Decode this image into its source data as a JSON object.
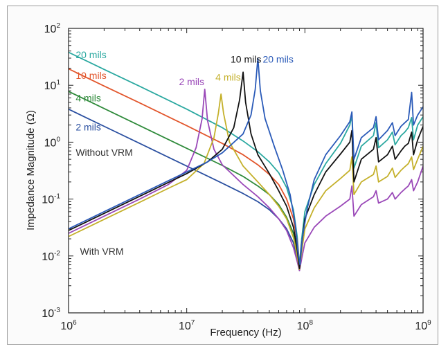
{
  "chart_data": {
    "type": "line",
    "title": "",
    "xlabel": "Frequency (Hz)",
    "ylabel": "Impedance Magnitude (Ω)",
    "xscale": "log",
    "yscale": "log",
    "xlim": [
      1000000,
      1000000000
    ],
    "ylim": [
      0.001,
      100
    ],
    "grid": false,
    "legend": "none",
    "x_tick_labels": [
      {
        "base": "10",
        "exp": "6",
        "value": 1000000
      },
      {
        "base": "10",
        "exp": "7",
        "value": 10000000
      },
      {
        "base": "10",
        "exp": "8",
        "value": 100000000
      },
      {
        "base": "10",
        "exp": "9",
        "value": 1000000000
      }
    ],
    "y_tick_labels": [
      {
        "base": "10",
        "exp": "-3",
        "value": 0.001
      },
      {
        "base": "10",
        "exp": "-2",
        "value": 0.01
      },
      {
        "base": "10",
        "exp": "-1",
        "value": 0.1
      },
      {
        "base": "10",
        "exp": "0",
        "value": 1
      },
      {
        "base": "10",
        "exp": "1",
        "value": 10
      },
      {
        "base": "10",
        "exp": "2",
        "value": 100
      }
    ],
    "series": [
      {
        "color": "#2aa8a0",
        "points": [
          [
            1000000.0,
            38
          ],
          [
            2000000.0,
            19
          ],
          [
            4000000.0,
            9.6
          ],
          [
            10000000.0,
            3.8
          ],
          [
            20000000.0,
            1.8
          ],
          [
            30000000.0,
            1.05
          ],
          [
            40000000.0,
            0.68
          ],
          [
            50000000.0,
            0.45
          ],
          [
            60000000.0,
            0.29
          ],
          [
            70000000.0,
            0.16
          ],
          [
            80000000.0,
            0.065
          ],
          [
            86000000.0,
            0.022
          ],
          [
            90000000.0,
            0.007
          ],
          [
            94000000.0,
            0.02
          ],
          [
            100000000.0,
            0.06
          ],
          [
            120000000.0,
            0.18
          ],
          [
            150000000.0,
            0.42
          ],
          [
            200000000.0,
            0.95
          ],
          [
            240000000.0,
            2.0
          ],
          [
            250000000.0,
            3.0
          ],
          [
            260000000.0,
            0.35
          ],
          [
            300000000.0,
            0.85
          ],
          [
            380000000.0,
            1.3
          ],
          [
            400000000.0,
            2.2
          ],
          [
            420000000.0,
            0.8
          ],
          [
            500000000.0,
            1.1
          ],
          [
            550000000.0,
            1.5
          ],
          [
            580000000.0,
            0.9
          ],
          [
            650000000.0,
            1.3
          ],
          [
            700000000.0,
            1.5
          ],
          [
            750000000.0,
            1.8
          ],
          [
            800000000.0,
            2.7
          ],
          [
            830000000.0,
            1.1
          ],
          [
            900000000.0,
            2.0
          ],
          [
            1000000000.0,
            2.8
          ]
        ]
      },
      {
        "color": "#e2552b",
        "points": [
          [
            1000000.0,
            19.5
          ],
          [
            2000000.0,
            9.7
          ],
          [
            4000000.0,
            4.9
          ],
          [
            10000000.0,
            1.95
          ],
          [
            20000000.0,
            0.95
          ],
          [
            30000000.0,
            0.6
          ],
          [
            40000000.0,
            0.4
          ],
          [
            50000000.0,
            0.27
          ],
          [
            60000000.0,
            0.18
          ],
          [
            70000000.0,
            0.1
          ],
          [
            80000000.0,
            0.045
          ],
          [
            86000000.0,
            0.018
          ],
          [
            90000000.0,
            0.0065
          ]
        ]
      },
      {
        "color": "#2e8a3a",
        "points": [
          [
            1000000.0,
            7.8
          ],
          [
            2000000.0,
            3.9
          ],
          [
            4000000.0,
            1.95
          ],
          [
            10000000.0,
            0.78
          ],
          [
            20000000.0,
            0.39
          ],
          [
            30000000.0,
            0.25
          ],
          [
            40000000.0,
            0.17
          ],
          [
            50000000.0,
            0.12
          ],
          [
            60000000.0,
            0.08
          ],
          [
            70000000.0,
            0.048
          ],
          [
            80000000.0,
            0.025
          ],
          [
            86000000.0,
            0.012
          ],
          [
            90000000.0,
            0.0058
          ]
        ]
      },
      {
        "color": "#2a4fa0",
        "points": [
          [
            1000000.0,
            3.8
          ],
          [
            2000000.0,
            1.9
          ],
          [
            4000000.0,
            0.95
          ],
          [
            10000000.0,
            0.38
          ],
          [
            20000000.0,
            0.19
          ],
          [
            30000000.0,
            0.125
          ],
          [
            40000000.0,
            0.09
          ],
          [
            50000000.0,
            0.065
          ],
          [
            60000000.0,
            0.045
          ],
          [
            70000000.0,
            0.03
          ],
          [
            80000000.0,
            0.017
          ],
          [
            86000000.0,
            0.009
          ],
          [
            90000000.0,
            0.0055
          ]
        ]
      },
      {
        "color": "#9a48b8",
        "points": [
          [
            1000000.0,
            0.025
          ],
          [
            2000000.0,
            0.05
          ],
          [
            4000000.0,
            0.1
          ],
          [
            7000000.0,
            0.18
          ],
          [
            10000000.0,
            0.32
          ],
          [
            12000000.0,
            0.8
          ],
          [
            13500000.0,
            2.6
          ],
          [
            14200000.0,
            8.5
          ],
          [
            15000000.0,
            2.4
          ],
          [
            17000000.0,
            0.75
          ],
          [
            20000000.0,
            0.4
          ],
          [
            30000000.0,
            0.18
          ],
          [
            40000000.0,
            0.11
          ],
          [
            50000000.0,
            0.07
          ],
          [
            60000000.0,
            0.045
          ],
          [
            70000000.0,
            0.028
          ],
          [
            80000000.0,
            0.014
          ],
          [
            86000000.0,
            0.008
          ],
          [
            90000000.0,
            0.0055
          ],
          [
            94000000.0,
            0.009
          ],
          [
            100000000.0,
            0.017
          ],
          [
            120000000.0,
            0.032
          ],
          [
            150000000.0,
            0.05
          ],
          [
            200000000.0,
            0.075
          ],
          [
            240000000.0,
            0.1
          ],
          [
            250000000.0,
            0.17
          ],
          [
            260000000.0,
            0.05
          ],
          [
            300000000.0,
            0.08
          ],
          [
            380000000.0,
            0.11
          ],
          [
            400000000.0,
            0.14
          ],
          [
            420000000.0,
            0.085
          ],
          [
            500000000.0,
            0.1
          ],
          [
            550000000.0,
            0.13
          ],
          [
            580000000.0,
            0.1
          ],
          [
            650000000.0,
            0.13
          ],
          [
            700000000.0,
            0.15
          ],
          [
            750000000.0,
            0.17
          ],
          [
            800000000.0,
            0.22
          ],
          [
            830000000.0,
            0.14
          ],
          [
            900000000.0,
            0.2
          ],
          [
            1000000000.0,
            0.38
          ]
        ]
      },
      {
        "color": "#c4b02a",
        "points": [
          [
            1000000.0,
            0.022
          ],
          [
            2000000.0,
            0.044
          ],
          [
            4000000.0,
            0.088
          ],
          [
            7000000.0,
            0.155
          ],
          [
            10000000.0,
            0.22
          ],
          [
            14000000.0,
            0.42
          ],
          [
            17000000.0,
            1.2
          ],
          [
            18500000.0,
            3.2
          ],
          [
            19500000.0,
            7.0
          ],
          [
            20500000.0,
            3.2
          ],
          [
            23000000.0,
            1.0
          ],
          [
            30000000.0,
            0.38
          ],
          [
            40000000.0,
            0.2
          ],
          [
            50000000.0,
            0.12
          ],
          [
            60000000.0,
            0.075
          ],
          [
            70000000.0,
            0.045
          ],
          [
            80000000.0,
            0.021
          ],
          [
            86000000.0,
            0.01
          ],
          [
            90000000.0,
            0.0058
          ],
          [
            94000000.0,
            0.012
          ],
          [
            100000000.0,
            0.03
          ],
          [
            120000000.0,
            0.07
          ],
          [
            150000000.0,
            0.14
          ],
          [
            200000000.0,
            0.23
          ],
          [
            240000000.0,
            0.32
          ],
          [
            250000000.0,
            0.55
          ],
          [
            260000000.0,
            0.12
          ],
          [
            300000000.0,
            0.2
          ],
          [
            380000000.0,
            0.27
          ],
          [
            400000000.0,
            0.38
          ],
          [
            420000000.0,
            0.2
          ],
          [
            500000000.0,
            0.25
          ],
          [
            550000000.0,
            0.35
          ],
          [
            580000000.0,
            0.24
          ],
          [
            650000000.0,
            0.32
          ],
          [
            700000000.0,
            0.37
          ],
          [
            750000000.0,
            0.42
          ],
          [
            800000000.0,
            0.55
          ],
          [
            830000000.0,
            0.33
          ],
          [
            900000000.0,
            0.5
          ],
          [
            1000000000.0,
            0.85
          ]
        ]
      },
      {
        "color": "#111111",
        "points": [
          [
            1000000.0,
            0.028
          ],
          [
            2000000.0,
            0.056
          ],
          [
            4000000.0,
            0.112
          ],
          [
            7000000.0,
            0.196
          ],
          [
            10000000.0,
            0.28
          ],
          [
            15000000.0,
            0.45
          ],
          [
            20000000.0,
            0.75
          ],
          [
            25000000.0,
            1.8
          ],
          [
            28000000.0,
            5.5
          ],
          [
            30000000.0,
            17
          ],
          [
            31500000.0,
            5.0
          ],
          [
            35000000.0,
            1.4
          ],
          [
            40000000.0,
            0.6
          ],
          [
            50000000.0,
            0.28
          ],
          [
            60000000.0,
            0.14
          ],
          [
            70000000.0,
            0.075
          ],
          [
            80000000.0,
            0.032
          ],
          [
            86000000.0,
            0.013
          ],
          [
            90000000.0,
            0.006
          ],
          [
            94000000.0,
            0.016
          ],
          [
            100000000.0,
            0.045
          ],
          [
            120000000.0,
            0.12
          ],
          [
            150000000.0,
            0.3
          ],
          [
            200000000.0,
            0.62
          ],
          [
            240000000.0,
            1.0
          ],
          [
            250000000.0,
            1.6
          ],
          [
            260000000.0,
            0.2
          ],
          [
            300000000.0,
            0.5
          ],
          [
            380000000.0,
            0.75
          ],
          [
            400000000.0,
            1.2
          ],
          [
            420000000.0,
            0.45
          ],
          [
            500000000.0,
            0.6
          ],
          [
            550000000.0,
            0.85
          ],
          [
            580000000.0,
            0.5
          ],
          [
            650000000.0,
            0.7
          ],
          [
            700000000.0,
            0.85
          ],
          [
            750000000.0,
            0.95
          ],
          [
            800000000.0,
            1.5
          ],
          [
            830000000.0,
            0.6
          ],
          [
            900000000.0,
            1.1
          ],
          [
            1000000000.0,
            1.9
          ]
        ]
      },
      {
        "color": "#2a5ab8",
        "points": [
          [
            1000000.0,
            0.03
          ],
          [
            2000000.0,
            0.06
          ],
          [
            4000000.0,
            0.12
          ],
          [
            7000000.0,
            0.21
          ],
          [
            10000000.0,
            0.3
          ],
          [
            15000000.0,
            0.45
          ],
          [
            20000000.0,
            0.65
          ],
          [
            30000000.0,
            1.4
          ],
          [
            35000000.0,
            3.0
          ],
          [
            38000000.0,
            8.5
          ],
          [
            40000000.0,
            30
          ],
          [
            42000000.0,
            8.0
          ],
          [
            46000000.0,
            2.6
          ],
          [
            55000000.0,
            0.85
          ],
          [
            65000000.0,
            0.32
          ],
          [
            75000000.0,
            0.12
          ],
          [
            83000000.0,
            0.035
          ],
          [
            88000000.0,
            0.01
          ],
          [
            91000000.0,
            0.007
          ],
          [
            95000000.0,
            0.02
          ],
          [
            105000000.0,
            0.07
          ],
          [
            120000000.0,
            0.22
          ],
          [
            150000000.0,
            0.6
          ],
          [
            200000000.0,
            1.3
          ],
          [
            240000000.0,
            2.3
          ],
          [
            250000000.0,
            3.4
          ],
          [
            260000000.0,
            0.5
          ],
          [
            300000000.0,
            1.2
          ],
          [
            380000000.0,
            1.8
          ],
          [
            400000000.0,
            2.8
          ],
          [
            420000000.0,
            1.1
          ],
          [
            500000000.0,
            1.6
          ],
          [
            550000000.0,
            2.2
          ],
          [
            580000000.0,
            1.3
          ],
          [
            650000000.0,
            1.9
          ],
          [
            700000000.0,
            2.2
          ],
          [
            750000000.0,
            2.5
          ],
          [
            800000000.0,
            7.5
          ],
          [
            830000000.0,
            2.0
          ],
          [
            900000000.0,
            3.0
          ],
          [
            1000000000.0,
            4.2
          ]
        ]
      }
    ],
    "annotations": [
      {
        "text": "20 mils",
        "color": "#2aa8a0",
        "x": 1150000.0,
        "y": 30
      },
      {
        "text": "10 mils",
        "color": "#e2552b",
        "x": 1150000.0,
        "y": 13
      },
      {
        "text": "4 mils",
        "color": "#2e8a3a",
        "x": 1150000.0,
        "y": 5.2
      },
      {
        "text": "2 mils",
        "color": "#2a4fa0",
        "x": 1150000.0,
        "y": 1.6
      },
      {
        "text": "Without VRM",
        "color": "#333333",
        "x": 1150000.0,
        "y": 0.58
      },
      {
        "text": "With VRM",
        "color": "#333333",
        "x": 1250000.0,
        "y": 0.0105
      },
      {
        "text": "2 mils",
        "color": "#9a48b8",
        "x": 8600000.0,
        "y": 10
      },
      {
        "text": "4 mils",
        "color": "#c4b02a",
        "x": 17500000.0,
        "y": 12
      },
      {
        "text": "10 mils",
        "color": "#111111",
        "x": 23500000.0,
        "y": 25
      },
      {
        "text": "20 mils",
        "color": "#2a5ab8",
        "x": 44000000.0,
        "y": 25
      }
    ]
  }
}
